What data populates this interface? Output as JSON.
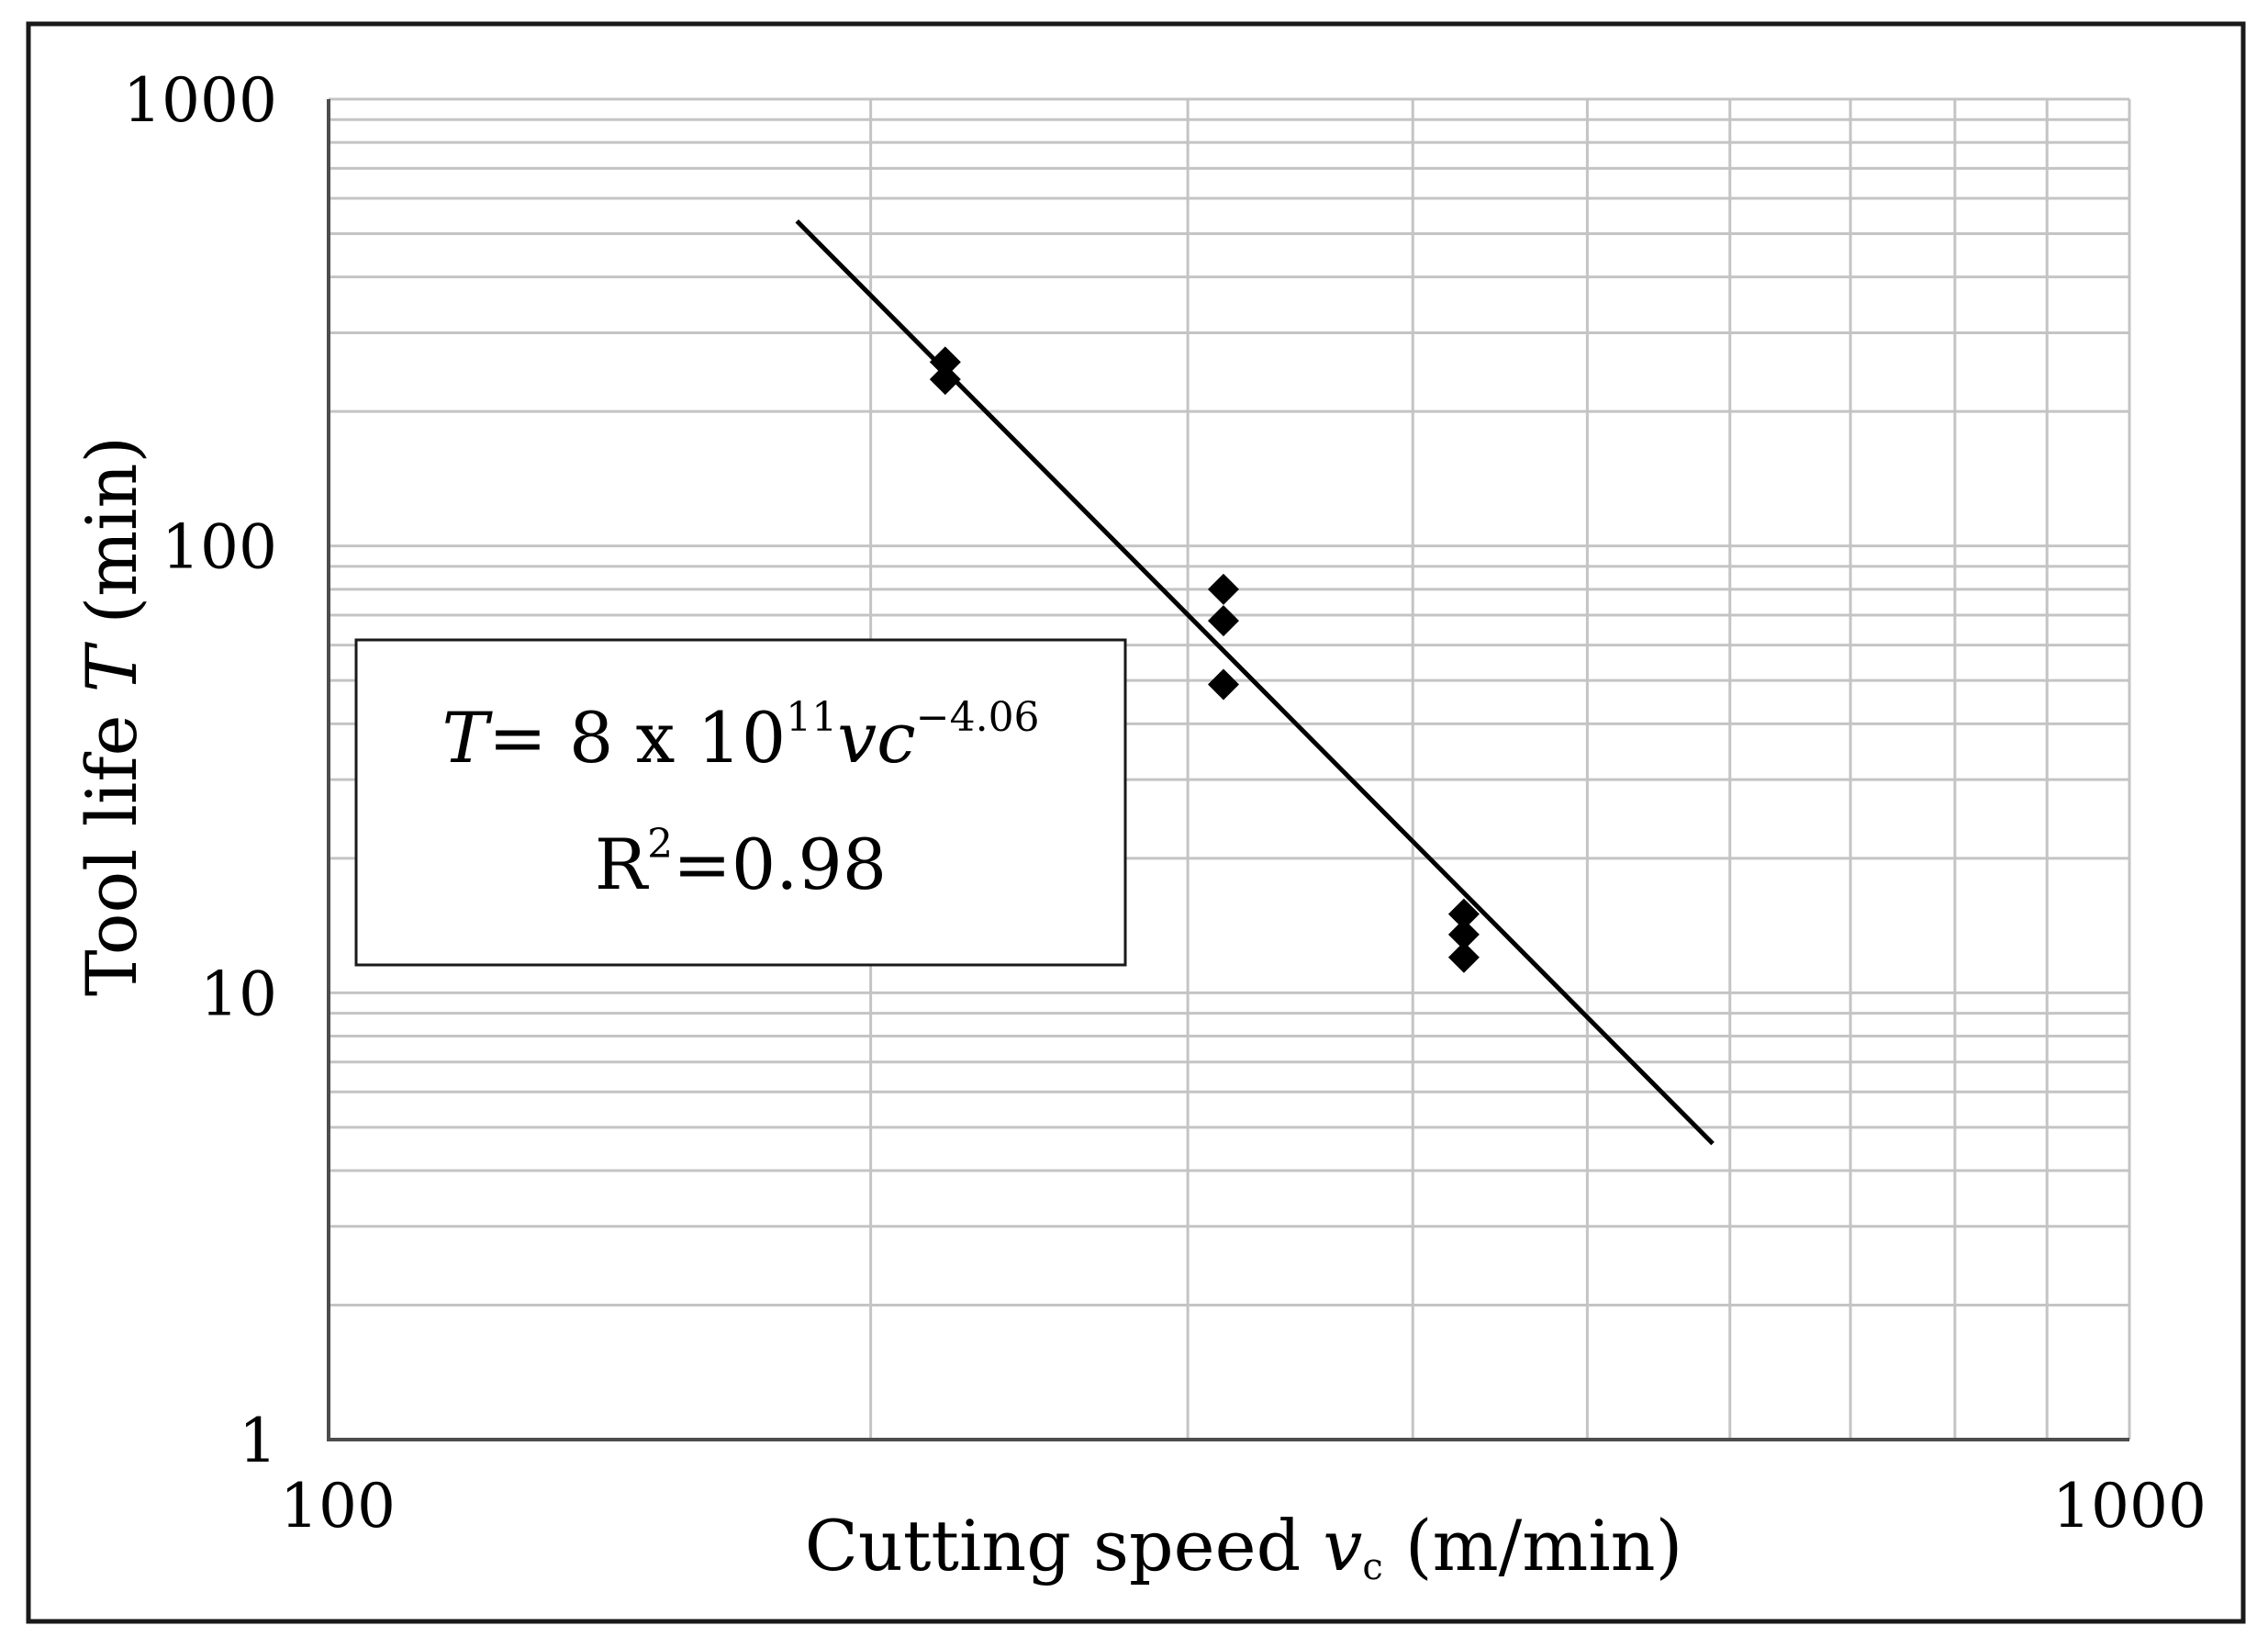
{
  "chart_data": {
    "type": "scatter",
    "xlabel_main": "Cutting speed ",
    "xlabel_var": "v",
    "xlabel_sub": "c",
    "xlabel_unit": " (m/min)",
    "ylabel_main": "Tool life ",
    "ylabel_var": "T",
    "ylabel_unit": " (min)",
    "x_scale": "log",
    "y_scale": "log",
    "xlim": [
      100,
      1000
    ],
    "ylim": [
      1,
      1000
    ],
    "x_ticks": [
      "100",
      "1000"
    ],
    "y_ticks": [
      "1",
      "10",
      "100",
      "1000"
    ],
    "grid": true,
    "series": [
      {
        "marker": "diamond",
        "color": "#000000",
        "points": [
          {
            "x": 220,
            "y": 258
          },
          {
            "x": 220,
            "y": 236
          },
          {
            "x": 314,
            "y": 80
          },
          {
            "x": 314,
            "y": 68
          },
          {
            "x": 314,
            "y": 49
          },
          {
            "x": 427,
            "y": 15
          },
          {
            "x": 427,
            "y": 13.5
          },
          {
            "x": 427,
            "y": 12
          }
        ]
      }
    ],
    "trendline": {
      "coefficient": 800000000000.0,
      "exponent": -4.06,
      "x_range": [
        182,
        587
      ],
      "color": "#000000"
    },
    "annotation": {
      "eq_var": "T",
      "eq_text": "= 8 x 10",
      "eq_exp_base": "11",
      "eq_var2": "vc",
      "eq_exp": "−4.06",
      "r2_base": "R",
      "r2_sup": "2",
      "r2_text": "=0.98"
    }
  }
}
